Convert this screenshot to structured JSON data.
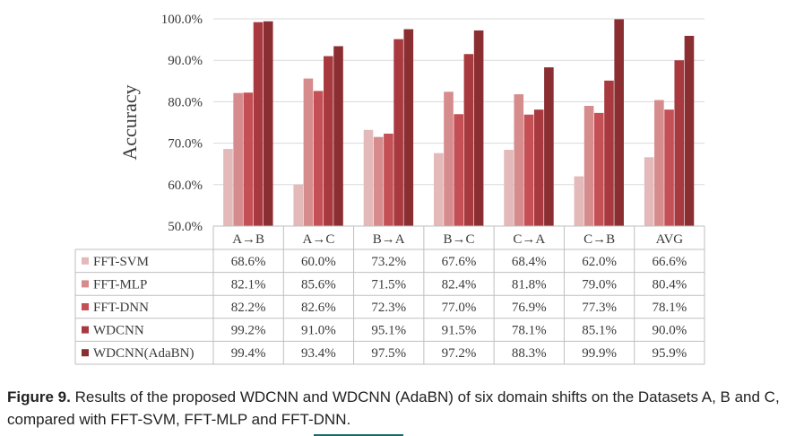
{
  "colors": {
    "FFT-SVM": "#e3b9b9",
    "FFT-MLP": "#d68b8c",
    "FFT-DNN": "#c45055",
    "WDCNN": "#a83a3f",
    "WDCNN(AdaBN)": "#8b2e32",
    "grid": "#d9d9d9",
    "table_border": "#bfbfbf",
    "text": "#3a3a3a"
  },
  "chart_data": {
    "type": "bar",
    "ylabel": "Accuracy",
    "ylim": [
      50,
      100
    ],
    "yticks": [
      "50.0%",
      "60.0%",
      "70.0%",
      "80.0%",
      "90.0%",
      "100.0%"
    ],
    "grid": true,
    "legend": "data-table",
    "categories": [
      "A→B",
      "A→C",
      "B→A",
      "B→C",
      "C→A",
      "C→B",
      "AVG"
    ],
    "series": [
      {
        "name": "FFT-SVM",
        "values": [
          68.6,
          60.0,
          73.2,
          67.6,
          68.4,
          62.0,
          66.6
        ],
        "labels": [
          "68.6%",
          "60.0%",
          "73.2%",
          "67.6%",
          "68.4%",
          "62.0%",
          "66.6%"
        ]
      },
      {
        "name": "FFT-MLP",
        "values": [
          82.1,
          85.6,
          71.5,
          82.4,
          81.8,
          79.0,
          80.4
        ],
        "labels": [
          "82.1%",
          "85.6%",
          "71.5%",
          "82.4%",
          "81.8%",
          "79.0%",
          "80.4%"
        ]
      },
      {
        "name": "FFT-DNN",
        "values": [
          82.2,
          82.6,
          72.3,
          77.0,
          76.9,
          77.3,
          78.1
        ],
        "labels": [
          "82.2%",
          "82.6%",
          "72.3%",
          "77.0%",
          "76.9%",
          "77.3%",
          "78.1%"
        ]
      },
      {
        "name": "WDCNN",
        "values": [
          99.2,
          91.0,
          95.1,
          91.5,
          78.1,
          85.1,
          90.0
        ],
        "labels": [
          "99.2%",
          "91.0%",
          "95.1%",
          "91.5%",
          "78.1%",
          "85.1%",
          "90.0%"
        ]
      },
      {
        "name": "WDCNN(AdaBN)",
        "values": [
          99.4,
          93.4,
          97.5,
          97.2,
          88.3,
          99.9,
          95.9
        ],
        "labels": [
          "99.4%",
          "93.4%",
          "97.5%",
          "97.2%",
          "88.3%",
          "99.9%",
          "95.9%"
        ]
      }
    ]
  },
  "caption": {
    "label": "Figure 9.",
    "text": " Results of the proposed WDCNN and WDCNN (AdaBN) of six domain shifts on the Datasets A, B and C, compared with FFT-SVM, FFT-MLP and FFT-DNN."
  }
}
